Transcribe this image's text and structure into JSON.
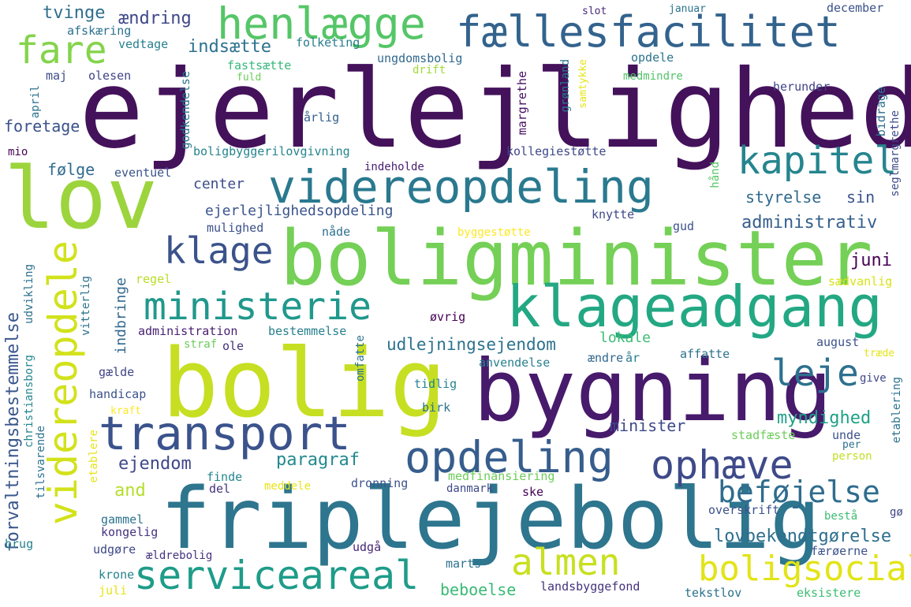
{
  "words": [
    {
      "text": "ejerlejlighed",
      "color": "#44115b"
    },
    {
      "text": "lov",
      "color": "#9cd43d"
    },
    {
      "text": "boligminister",
      "color": "#74d056"
    },
    {
      "text": "bolig",
      "color": "#c6df22"
    },
    {
      "text": "bygning",
      "color": "#471a6c"
    },
    {
      "text": "friplejebolig",
      "color": "#2e758e"
    },
    {
      "text": "klageadgang",
      "color": "#23a883"
    },
    {
      "text": "transport",
      "color": "#3b538c"
    },
    {
      "text": "videreopdeling",
      "color": "#2a798f"
    },
    {
      "text": "fællesfacilitet",
      "color": "#33638d"
    },
    {
      "text": "henlægge",
      "color": "#55c667"
    },
    {
      "text": "fare",
      "color": "#84d44b"
    },
    {
      "text": "ministerie",
      "color": "#20988c"
    },
    {
      "text": "opdeling",
      "color": "#365d8c"
    },
    {
      "text": "ophæve",
      "color": "#3e4a89"
    },
    {
      "text": "serviceareal",
      "color": "#1e9c89"
    },
    {
      "text": "almen",
      "color": "#c8e020"
    },
    {
      "text": "videreopdele",
      "color": "#d2e21b"
    },
    {
      "text": "kapitel",
      "color": "#25858e"
    },
    {
      "text": "klage",
      "color": "#3b528b"
    },
    {
      "text": "leje",
      "color": "#2d718e"
    },
    {
      "text": "boligsocial",
      "color": "#e2e418"
    },
    {
      "text": "beføjelse",
      "color": "#2f6c8e"
    },
    {
      "text": "forvaltningsbestemmelse",
      "color": "#39568c"
    },
    {
      "text": "udlejningsejendom",
      "color": "#2c728e"
    },
    {
      "text": "ejerlejlighedsopdeling",
      "color": "#3a548c"
    },
    {
      "text": "indsætte",
      "color": "#2d718e"
    },
    {
      "text": "ændring",
      "color": "#3f4788"
    },
    {
      "text": "tvinge",
      "color": "#2e6e8e"
    },
    {
      "text": "afskæring",
      "color": "#2d718e"
    },
    {
      "text": "vedtage",
      "color": "#27808e"
    },
    {
      "text": "folketing",
      "color": "#287d8e"
    },
    {
      "text": "fastsætte",
      "color": "#35b779"
    },
    {
      "text": "fuld",
      "color": "#6ccd5a"
    },
    {
      "text": "ungdomsbolig",
      "color": "#31688e"
    },
    {
      "text": "drift",
      "color": "#a0da39"
    },
    {
      "text": "maj",
      "color": "#3e4c8a"
    },
    {
      "text": "olesen",
      "color": "#414487"
    },
    {
      "text": "april",
      "color": "#2d718e"
    },
    {
      "text": "ejendom",
      "color": "#3f4889"
    },
    {
      "text": "administrativ",
      "color": "#355f8d"
    },
    {
      "text": "paragraf",
      "color": "#23898e"
    },
    {
      "text": "and",
      "color": "#b5de2b"
    },
    {
      "text": "minister",
      "color": "#3e4989"
    },
    {
      "text": "myndighed",
      "color": "#1fa187"
    },
    {
      "text": "lovbekendtgørelse",
      "color": "#2e6f8e"
    },
    {
      "text": "juni",
      "color": "#440154"
    },
    {
      "text": "sin",
      "color": "#3a538b"
    },
    {
      "text": "styrelse",
      "color": "#306a8e"
    },
    {
      "text": "følge",
      "color": "#2f6b8e"
    },
    {
      "text": "center",
      "color": "#3d4d8a"
    },
    {
      "text": "foretage",
      "color": "#3b518b"
    },
    {
      "text": "indbringe",
      "color": "#31688e"
    },
    {
      "text": "beboelse",
      "color": "#3aba76"
    },
    {
      "text": "januar",
      "color": "#2c738e"
    },
    {
      "text": "december",
      "color": "#3b528b"
    },
    {
      "text": "slot",
      "color": "#482878"
    },
    {
      "text": "opdele",
      "color": "#2c728e"
    },
    {
      "text": "herunder",
      "color": "#414487"
    },
    {
      "text": "medmindre",
      "color": "#52c569"
    },
    {
      "text": "margrethe",
      "color": "#471063"
    },
    {
      "text": "grønland",
      "color": "#2a788e"
    },
    {
      "text": "samtykke",
      "color": "#e5e419"
    },
    {
      "text": "bidrage",
      "color": "#2c718e"
    },
    {
      "text": "seglmargrethe",
      "color": "#3e4a89"
    },
    {
      "text": "godkendelse",
      "color": "#2a768e"
    },
    {
      "text": "årlig",
      "color": "#355f8d"
    },
    {
      "text": "boligbyggerilovgivning",
      "color": "#25848e"
    },
    {
      "text": "kollegiestøtte",
      "color": "#3f4889"
    },
    {
      "text": "mio",
      "color": "#440154"
    },
    {
      "text": "eventuel",
      "color": "#3a538b"
    },
    {
      "text": "indeholde",
      "color": "#481d6f"
    },
    {
      "text": "hånd",
      "color": "#56c667"
    },
    {
      "text": "mulighed",
      "color": "#3c4f8a"
    },
    {
      "text": "nåde",
      "color": "#2c728e"
    },
    {
      "text": "byggestøtte",
      "color": "#fde725"
    },
    {
      "text": "knytte",
      "color": "#3f4889"
    },
    {
      "text": "gud",
      "color": "#3b528b"
    },
    {
      "text": "regel",
      "color": "#b8de29"
    },
    {
      "text": "sædvanlig",
      "color": "#d8e219"
    },
    {
      "text": "udvikling",
      "color": "#2d708e"
    },
    {
      "text": "vitterlig",
      "color": "#2c718e"
    },
    {
      "text": "administration",
      "color": "#481f70"
    },
    {
      "text": "bestemmelse",
      "color": "#27808e"
    },
    {
      "text": "øvrig",
      "color": "#440154"
    },
    {
      "text": "straf",
      "color": "#6ccd5a"
    },
    {
      "text": "ole",
      "color": "#46327e"
    },
    {
      "text": "omfatte",
      "color": "#2c728e"
    },
    {
      "text": "lokale",
      "color": "#3dbc74"
    },
    {
      "text": "affatte",
      "color": "#2c728e"
    },
    {
      "text": "august",
      "color": "#3b528b"
    },
    {
      "text": "træde",
      "color": "#e5e419"
    },
    {
      "text": "anvendelse",
      "color": "#27808e"
    },
    {
      "text": "ændre",
      "color": "#31688e"
    },
    {
      "text": "år",
      "color": "#287d8e"
    },
    {
      "text": "gælde",
      "color": "#414487"
    },
    {
      "text": "christiansborg",
      "color": "#24868e"
    },
    {
      "text": "tilsvarende",
      "color": "#2c718e"
    },
    {
      "text": "handicap",
      "color": "#3b528b"
    },
    {
      "text": "tidlig",
      "color": "#25848e"
    },
    {
      "text": "kraft",
      "color": "#fde725"
    },
    {
      "text": "birk",
      "color": "#2c728e"
    },
    {
      "text": "give",
      "color": "#3f4788"
    },
    {
      "text": "etablering",
      "color": "#2c728e"
    },
    {
      "text": "stadfæste",
      "color": "#6ccd5a"
    },
    {
      "text": "unde",
      "color": "#3b528b"
    },
    {
      "text": "per",
      "color": "#2c728e"
    },
    {
      "text": "person",
      "color": "#c2df23"
    },
    {
      "text": "etablere",
      "color": "#e5e419"
    },
    {
      "text": "finde",
      "color": "#24868e"
    },
    {
      "text": "medfinansiering",
      "color": "#6ccd5a"
    },
    {
      "text": "meddele",
      "color": "#e5e419"
    },
    {
      "text": "dronning",
      "color": "#3b528b"
    },
    {
      "text": "danmark",
      "color": "#3f4889"
    },
    {
      "text": "del",
      "color": "#46327e"
    },
    {
      "text": "ske",
      "color": "#440154"
    },
    {
      "text": "gammel",
      "color": "#2c738e"
    },
    {
      "text": "kongelig",
      "color": "#46327e"
    },
    {
      "text": "overskrift",
      "color": "#3b528b"
    },
    {
      "text": "bestå",
      "color": "#3dbc74"
    },
    {
      "text": "gø",
      "color": "#414487"
    },
    {
      "text": "brug",
      "color": "#26828e"
    },
    {
      "text": "udgøre",
      "color": "#3f4889"
    },
    {
      "text": "ældrebolig",
      "color": "#46327e"
    },
    {
      "text": "udgå",
      "color": "#482878"
    },
    {
      "text": "færøerne",
      "color": "#3b528b"
    },
    {
      "text": "krone",
      "color": "#26828e"
    },
    {
      "text": "marts",
      "color": "#2c728e"
    },
    {
      "text": "juli",
      "color": "#e5e419"
    },
    {
      "text": "landsbyggefond",
      "color": "#46327e"
    },
    {
      "text": "tekstlov",
      "color": "#2c728e"
    },
    {
      "text": "eksistere",
      "color": "#3dbc74"
    }
  ]
}
